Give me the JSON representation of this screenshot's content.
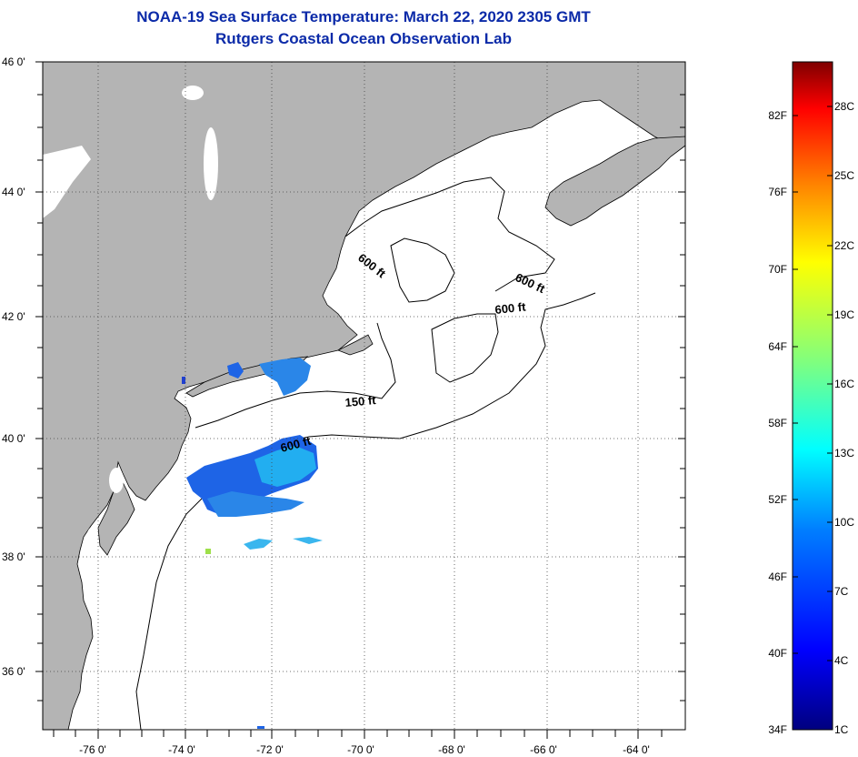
{
  "title": {
    "line1": "NOAA-19 Sea Surface Temperature:  March 22, 2020 2305 GMT",
    "line2": "Rutgers Coastal Ocean Observation Lab"
  },
  "map": {
    "lon_range": [
      -77,
      -63
    ],
    "lat_range": [
      35,
      46
    ],
    "lon_tick_labels": [
      "-76 0'",
      "-74 0'",
      "-72 0'",
      "-70 0'",
      "-68 0'",
      "-66 0'",
      "-64 0'"
    ],
    "lat_tick_labels": [
      "46 0'",
      "44 0'",
      "42 0'",
      "40 0'",
      "38 0'",
      "36 0'"
    ],
    "grid": "dotted",
    "land_color": "#b4b4b4",
    "water_color": "#ffffff",
    "contour_labels": [
      "600 ft",
      "600 ft",
      "600 ft",
      "150 ft",
      "600 ft"
    ]
  },
  "colorbar": {
    "fahrenheit_labels": [
      "82F",
      "76F",
      "70F",
      "64F",
      "58F",
      "52F",
      "46F",
      "40F",
      "34F"
    ],
    "celsius_labels": [
      "28C",
      "25C",
      "22C",
      "19C",
      "16C",
      "13C",
      "10C",
      "7C",
      "4C",
      "1C"
    ],
    "colors": [
      "#00007f",
      "#0000ff",
      "#007fff",
      "#00ffff",
      "#7fff7f",
      "#ffff00",
      "#ff7f00",
      "#ff0000",
      "#7f0000"
    ]
  }
}
